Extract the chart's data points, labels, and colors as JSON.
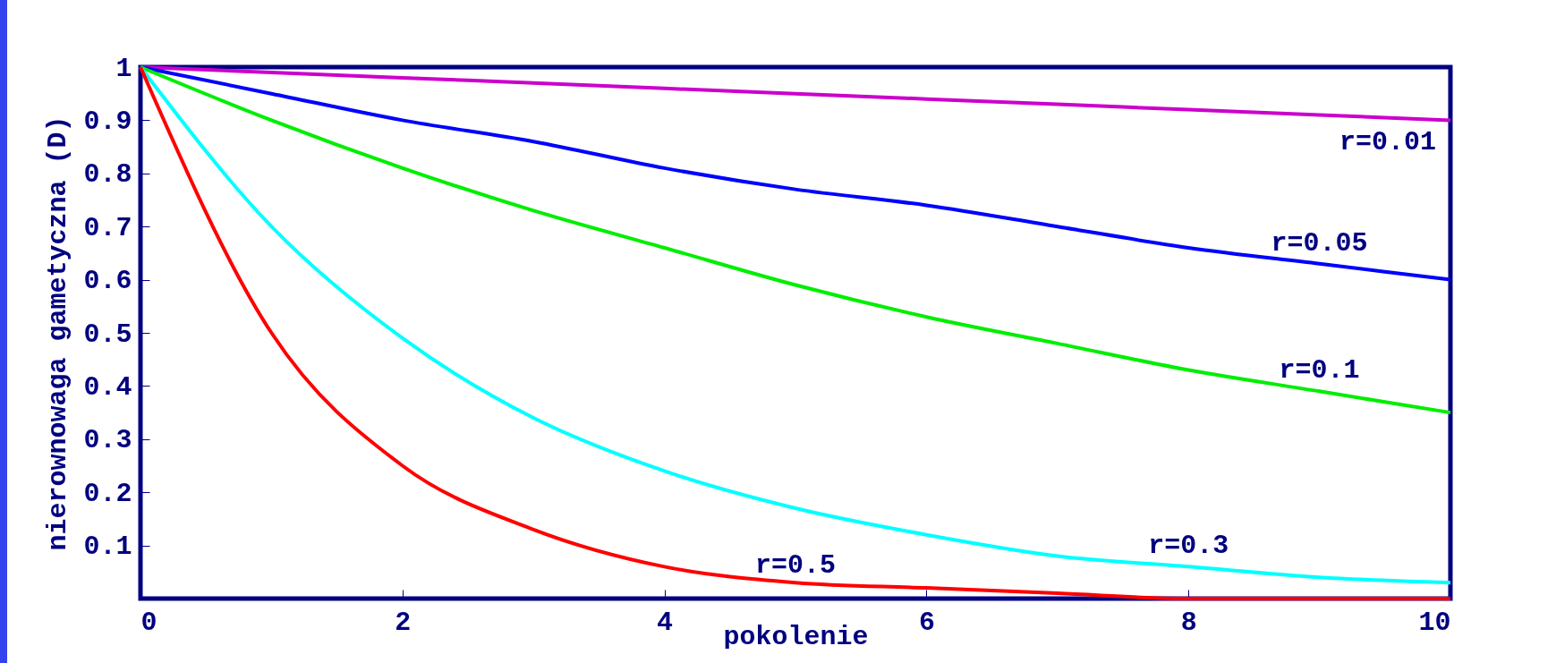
{
  "chart_data": {
    "type": "line",
    "xlabel": "pokolenie",
    "ylabel": "nierownowaga gametyczna (D)",
    "x": [
      0,
      1,
      2,
      3,
      4,
      5,
      6,
      7,
      8,
      9,
      10
    ],
    "series": [
      {
        "name": "r=0.01",
        "color": "#cc00cc",
        "values": [
          1,
          0.99,
          0.98,
          0.97,
          0.96,
          0.95,
          0.94,
          0.93,
          0.92,
          0.91,
          0.9
        ]
      },
      {
        "name": "r=0.05",
        "color": "#0000ff",
        "values": [
          1,
          0.95,
          0.9,
          0.86,
          0.81,
          0.77,
          0.74,
          0.7,
          0.66,
          0.63,
          0.6
        ]
      },
      {
        "name": "r=0.1",
        "color": "#00ee00",
        "values": [
          1,
          0.9,
          0.81,
          0.73,
          0.66,
          0.59,
          0.53,
          0.48,
          0.43,
          0.39,
          0.35
        ]
      },
      {
        "name": "r=0.3",
        "color": "#00ffff",
        "values": [
          1,
          0.7,
          0.49,
          0.34,
          0.24,
          0.17,
          0.12,
          0.08,
          0.06,
          0.04,
          0.03
        ]
      },
      {
        "name": "r=0.5",
        "color": "#ff0000",
        "values": [
          1,
          0.5,
          0.25,
          0.13,
          0.06,
          0.03,
          0.02,
          0.01,
          0,
          0,
          0
        ]
      }
    ],
    "xlim": [
      0,
      10
    ],
    "xticks": [
      0,
      2,
      4,
      6,
      8,
      10
    ],
    "ylim": [
      0,
      1
    ],
    "yticks": [
      {
        "value": 0,
        "label": null
      },
      0.1,
      0.2,
      0.3,
      0.4,
      0.5,
      0.6,
      0.7,
      0.8,
      0.9,
      1
    ],
    "grid": false,
    "legend": false,
    "marker": "none",
    "line_style": "solid"
  }
}
